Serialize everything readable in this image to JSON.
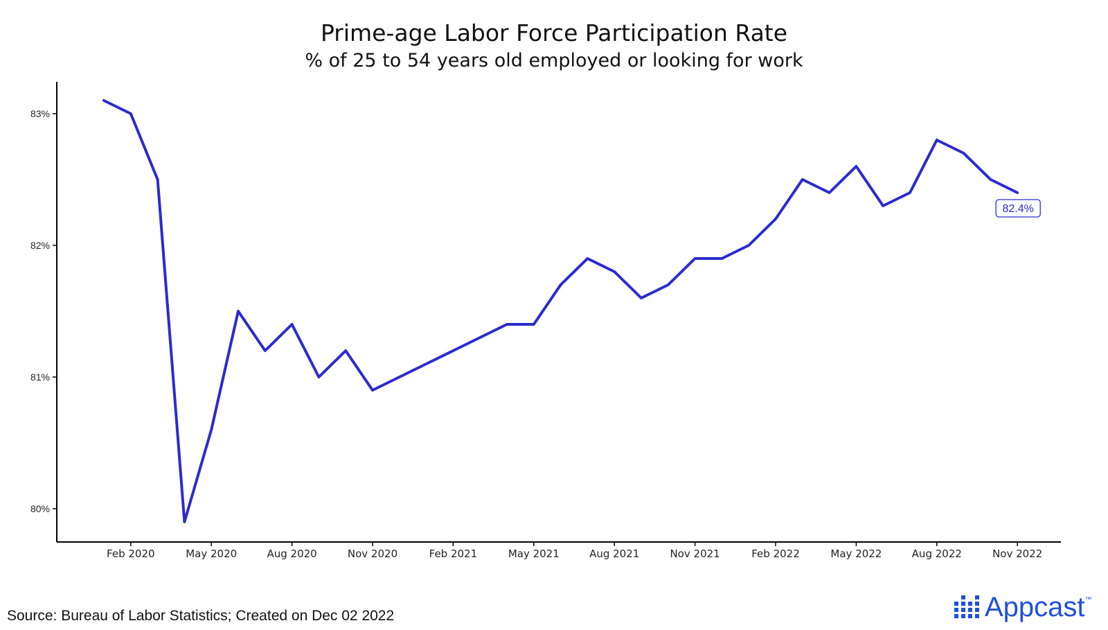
{
  "chart_data": {
    "type": "line",
    "title": "Prime-age Labor Force Participation Rate",
    "subtitle": "% of 25 to 54 years old employed or looking for work",
    "xlabel": "",
    "ylabel": "",
    "ylim": [
      79.75,
      83.25
    ],
    "yticks": [
      80,
      81,
      82,
      83
    ],
    "ytick_labels": [
      "80%",
      "81%",
      "82%",
      "83%"
    ],
    "xticks": [
      "2020-02",
      "2020-05",
      "2020-08",
      "2020-11",
      "2021-02",
      "2021-05",
      "2021-08",
      "2021-11",
      "2022-02",
      "2022-05",
      "2022-08",
      "2022-11"
    ],
    "xtick_labels": [
      "Feb 2020",
      "May 2020",
      "Aug 2020",
      "Nov 2020",
      "Feb 2021",
      "May 2021",
      "Aug 2021",
      "Nov 2021",
      "Feb 2022",
      "May 2022",
      "Aug 2022",
      "Nov 2022"
    ],
    "x": [
      "2020-01",
      "2020-02",
      "2020-03",
      "2020-04",
      "2020-05",
      "2020-06",
      "2020-07",
      "2020-08",
      "2020-09",
      "2020-10",
      "2020-11",
      "2020-12",
      "2021-01",
      "2021-02",
      "2021-03",
      "2021-04",
      "2021-05",
      "2021-06",
      "2021-07",
      "2021-08",
      "2021-09",
      "2021-10",
      "2021-11",
      "2021-12",
      "2022-01",
      "2022-02",
      "2022-03",
      "2022-04",
      "2022-05",
      "2022-06",
      "2022-07",
      "2022-08",
      "2022-09",
      "2022-10",
      "2022-11"
    ],
    "series": [
      {
        "color": "#2b2bd0",
        "values": [
          83.1,
          83.0,
          82.5,
          79.9,
          80.6,
          81.5,
          81.2,
          81.4,
          81.0,
          81.2,
          80.9,
          81.0,
          81.1,
          81.2,
          81.3,
          81.4,
          81.4,
          81.7,
          81.9,
          81.8,
          81.6,
          81.7,
          81.9,
          81.9,
          82.0,
          82.2,
          82.5,
          82.4,
          82.6,
          82.3,
          82.4,
          82.8,
          82.7,
          82.5,
          82.4
        ]
      }
    ],
    "end_label": "82.4%",
    "grid": false,
    "legend": "none"
  },
  "source_note": "Source: Bureau of Labor Statistics; Created on Dec 02 2022",
  "logo": {
    "text": "Appcast",
    "tm": "™",
    "color": "#1f4fe0",
    "icon": "dot-grid-icon"
  }
}
